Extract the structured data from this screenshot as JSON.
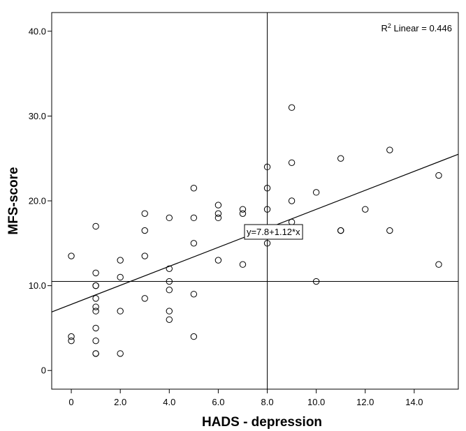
{
  "chart_data": {
    "type": "scatter",
    "xlabel": "HADS - depression",
    "ylabel": "MFS-score",
    "xlim": [
      -0.8,
      15.8
    ],
    "ylim": [
      -2.2,
      42.2
    ],
    "xticks": [
      0,
      2,
      4,
      6,
      8,
      10,
      12,
      14
    ],
    "xtick_labels": [
      "0",
      "2.0",
      "4.0",
      "6.0",
      "8.0",
      "10.0",
      "12.0",
      "14.0"
    ],
    "yticks": [
      0,
      10,
      20,
      30,
      40
    ],
    "ytick_labels": [
      "0",
      "10.0",
      "20.0",
      "30.0",
      "40.0"
    ],
    "grid": false,
    "points": [
      {
        "x": 0,
        "y": 13.5
      },
      {
        "x": 0,
        "y": 4
      },
      {
        "x": 0,
        "y": 3.5
      },
      {
        "x": 1,
        "y": 17
      },
      {
        "x": 1,
        "y": 11.5
      },
      {
        "x": 1,
        "y": 10
      },
      {
        "x": 1,
        "y": 10
      },
      {
        "x": 1,
        "y": 8.5
      },
      {
        "x": 1,
        "y": 7.5
      },
      {
        "x": 1,
        "y": 7
      },
      {
        "x": 1,
        "y": 5
      },
      {
        "x": 1,
        "y": 3.5
      },
      {
        "x": 1,
        "y": 2
      },
      {
        "x": 1,
        "y": 2
      },
      {
        "x": 2,
        "y": 13
      },
      {
        "x": 2,
        "y": 11
      },
      {
        "x": 2,
        "y": 7
      },
      {
        "x": 2,
        "y": 2
      },
      {
        "x": 3,
        "y": 18.5
      },
      {
        "x": 3,
        "y": 16.5
      },
      {
        "x": 3,
        "y": 13.5
      },
      {
        "x": 3,
        "y": 8.5
      },
      {
        "x": 4,
        "y": 18
      },
      {
        "x": 4,
        "y": 12
      },
      {
        "x": 4,
        "y": 10.5
      },
      {
        "x": 4,
        "y": 9.5
      },
      {
        "x": 4,
        "y": 7
      },
      {
        "x": 4,
        "y": 6
      },
      {
        "x": 5,
        "y": 21.5
      },
      {
        "x": 5,
        "y": 18
      },
      {
        "x": 5,
        "y": 15
      },
      {
        "x": 5,
        "y": 9
      },
      {
        "x": 5,
        "y": 4
      },
      {
        "x": 6,
        "y": 19.5
      },
      {
        "x": 6,
        "y": 18.5
      },
      {
        "x": 6,
        "y": 18
      },
      {
        "x": 6,
        "y": 13
      },
      {
        "x": 7,
        "y": 19
      },
      {
        "x": 7,
        "y": 18.5
      },
      {
        "x": 7,
        "y": 12.5
      },
      {
        "x": 8,
        "y": 24
      },
      {
        "x": 8,
        "y": 21.5
      },
      {
        "x": 8,
        "y": 19
      },
      {
        "x": 8,
        "y": 15
      },
      {
        "x": 9,
        "y": 31
      },
      {
        "x": 9,
        "y": 24.5
      },
      {
        "x": 9,
        "y": 20
      },
      {
        "x": 9,
        "y": 17.5
      },
      {
        "x": 10,
        "y": 21
      },
      {
        "x": 10,
        "y": 10.5
      },
      {
        "x": 11,
        "y": 25
      },
      {
        "x": 11,
        "y": 16.5
      },
      {
        "x": 11,
        "y": 16.5
      },
      {
        "x": 12,
        "y": 19
      },
      {
        "x": 13,
        "y": 26
      },
      {
        "x": 13,
        "y": 16.5
      },
      {
        "x": 15,
        "y": 23
      },
      {
        "x": 15,
        "y": 12.5
      }
    ],
    "fit_line": {
      "intercept": 7.8,
      "slope": 1.12,
      "label": "y=7.8+1.12*x",
      "label_anchor": {
        "x": 7.1,
        "y": 16.3
      }
    },
    "r2": {
      "prefix": "R",
      "superscript": "2",
      "suffix": " Linear = 0.446"
    },
    "reference_lines": {
      "x": 8,
      "y": 10.5
    }
  }
}
